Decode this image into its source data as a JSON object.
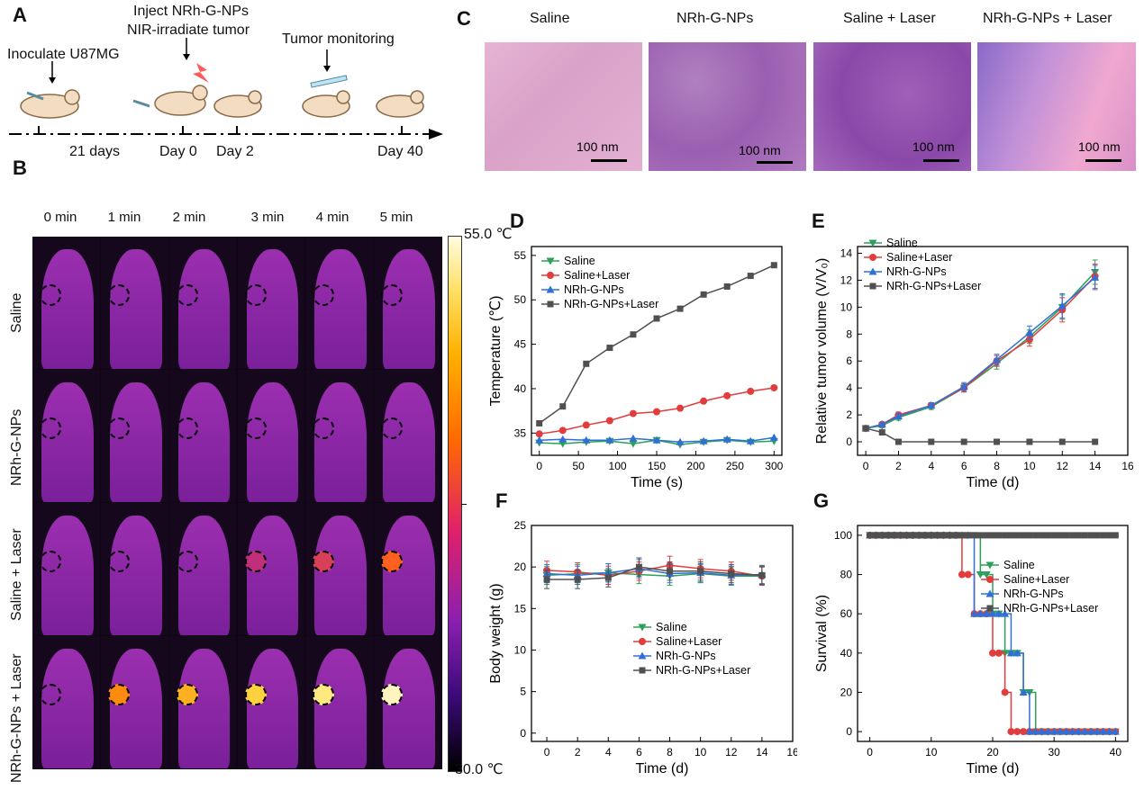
{
  "panelA": {
    "letter": "A",
    "inoculate": "Inoculate U87MG",
    "inject_line1": "Inject NRh-G-NPs",
    "inject_line2": "NIR-irradiate tumor",
    "monitor": "Tumor monitoring",
    "t_21days": "21 days",
    "t_day0": "Day 0",
    "t_day2": "Day 2",
    "t_day40": "Day 40"
  },
  "panelB": {
    "letter": "B",
    "times": [
      "0 min",
      "1 min",
      "2 min",
      "3 min",
      "4 min",
      "5 min"
    ],
    "rows": [
      "Saline",
      "NRh-G-NPs",
      "Saline + Laser",
      "NRh-G-NPs + Laser"
    ],
    "scale_max": "55.0 ℃",
    "scale_min": "30.0 ℃",
    "colors": {
      "scale_top": "#fffbe0",
      "scale_mid": "#ff6a00",
      "scale_low": "#8a1fb0",
      "scale_bottom": "#000000"
    }
  },
  "panelC": {
    "letter": "C",
    "titles": [
      "Saline",
      "NRh-G-NPs",
      "Saline + Laser",
      "NRh-G-NPs + Laser"
    ],
    "scale_label": "100 nm"
  },
  "chart_data": [
    {
      "id": "D",
      "type": "line",
      "xlabel": "Time (s)",
      "ylabel": "Temperature (℃)",
      "xlim": [
        -10,
        310
      ],
      "ylim": [
        32.5,
        56
      ],
      "xticks": [
        0,
        50,
        100,
        150,
        200,
        250,
        300
      ],
      "yticks": [
        35,
        40,
        45,
        50,
        55
      ],
      "legend": "top-left",
      "series": [
        {
          "name": "Saline",
          "color": "#2ca05a",
          "marker": "tri-down",
          "x": [
            0,
            30,
            60,
            90,
            120,
            150,
            180,
            210,
            240,
            270,
            300
          ],
          "y": [
            33.9,
            33.8,
            34.0,
            34.1,
            33.8,
            34.2,
            33.7,
            34.0,
            34.2,
            34.0,
            34.1
          ]
        },
        {
          "name": "Saline+Laser",
          "color": "#e23c3c",
          "marker": "circle",
          "x": [
            0,
            30,
            60,
            90,
            120,
            150,
            180,
            210,
            240,
            270,
            300
          ],
          "y": [
            34.9,
            35.3,
            35.9,
            36.4,
            37.2,
            37.4,
            37.8,
            38.6,
            39.2,
            39.7,
            40.1
          ]
        },
        {
          "name": "NRh-G-NPs",
          "color": "#2f6fd6",
          "marker": "tri-up",
          "x": [
            0,
            30,
            60,
            90,
            120,
            150,
            180,
            210,
            240,
            270,
            300
          ],
          "y": [
            34.2,
            34.3,
            34.2,
            34.2,
            34.4,
            34.2,
            34.0,
            34.1,
            34.3,
            34.1,
            34.5
          ]
        },
        {
          "name": "NRh-G-NPs+Laser",
          "color": "#505050",
          "marker": "square",
          "x": [
            0,
            30,
            60,
            90,
            120,
            150,
            180,
            210,
            240,
            270,
            300
          ],
          "y": [
            36.1,
            38.0,
            42.8,
            44.6,
            46.1,
            47.9,
            49.0,
            50.6,
            51.5,
            52.7,
            53.9
          ]
        }
      ]
    },
    {
      "id": "E",
      "type": "line",
      "xlabel": "Time (d)",
      "ylabel": "Relative tumor volume (V/V₀)",
      "xlim": [
        -0.5,
        16
      ],
      "ylim": [
        -1,
        14.5
      ],
      "xticks": [
        0,
        2,
        4,
        6,
        8,
        10,
        12,
        14,
        16
      ],
      "yticks": [
        0,
        2,
        4,
        6,
        8,
        10,
        12,
        14
      ],
      "legend": "top-left",
      "series": [
        {
          "name": "Saline",
          "color": "#2ca05a",
          "marker": "tri-down",
          "x": [
            0,
            1,
            2,
            4,
            6,
            8,
            10,
            12,
            14
          ],
          "y": [
            1.0,
            1.2,
            1.8,
            2.6,
            4.0,
            5.8,
            7.8,
            10.0,
            12.6
          ]
        },
        {
          "name": "Saline+Laser",
          "color": "#e23c3c",
          "marker": "circle",
          "x": [
            0,
            1,
            2,
            4,
            6,
            8,
            10,
            12,
            14
          ],
          "y": [
            1.0,
            1.3,
            2.0,
            2.7,
            4.0,
            6.0,
            7.6,
            9.8,
            12.3
          ]
        },
        {
          "name": "NRh-G-NPs",
          "color": "#2f6fd6",
          "marker": "tri-up",
          "x": [
            0,
            1,
            2,
            4,
            6,
            8,
            10,
            12,
            14
          ],
          "y": [
            1.0,
            1.3,
            1.9,
            2.7,
            4.1,
            6.1,
            8.1,
            10.1,
            12.2
          ]
        },
        {
          "name": "NRh-G-NPs+Laser",
          "color": "#505050",
          "marker": "square",
          "x": [
            0,
            1,
            2,
            4,
            6,
            8,
            10,
            12,
            14
          ],
          "y": [
            1.0,
            0.7,
            0.0,
            0.0,
            0.0,
            0.0,
            0.0,
            0.0,
            0.0
          ]
        }
      ]
    },
    {
      "id": "F",
      "type": "line",
      "xlabel": "Time (d)",
      "ylabel": "Body weight (g)",
      "xlim": [
        -1,
        16
      ],
      "ylim": [
        -1,
        25
      ],
      "xticks": [
        0,
        2,
        4,
        6,
        8,
        10,
        12,
        14,
        16
      ],
      "yticks": [
        0,
        5,
        10,
        15,
        20,
        25
      ],
      "legend": "center-right",
      "series": [
        {
          "name": "Saline",
          "color": "#2ca05a",
          "marker": "tri-down",
          "x": [
            0,
            2,
            4,
            6,
            8,
            10,
            12,
            14
          ],
          "y": [
            19.0,
            19.2,
            19.3,
            19.1,
            18.9,
            19.2,
            18.9,
            18.9
          ]
        },
        {
          "name": "Saline+Laser",
          "color": "#e23c3c",
          "marker": "circle",
          "x": [
            0,
            2,
            4,
            6,
            8,
            10,
            12,
            14
          ],
          "y": [
            19.6,
            19.4,
            19.0,
            19.5,
            20.2,
            19.8,
            19.5,
            18.9
          ]
        },
        {
          "name": "NRh-G-NPs",
          "color": "#2f6fd6",
          "marker": "tri-up",
          "x": [
            0,
            2,
            4,
            6,
            8,
            10,
            12,
            14
          ],
          "y": [
            19.2,
            19.0,
            19.3,
            19.8,
            19.2,
            19.3,
            19.0,
            19.1
          ]
        },
        {
          "name": "NRh-G-NPs+Laser",
          "color": "#505050",
          "marker": "square",
          "x": [
            0,
            2,
            4,
            6,
            8,
            10,
            12,
            14
          ],
          "y": [
            18.5,
            18.5,
            18.7,
            20.0,
            19.5,
            19.5,
            19.2,
            19.0
          ]
        }
      ]
    },
    {
      "id": "G",
      "type": "line",
      "xlabel": "Time (d)",
      "ylabel": "Survival (%)",
      "xlim": [
        -2,
        42
      ],
      "ylim": [
        -5,
        105
      ],
      "xticks": [
        0,
        10,
        20,
        30,
        40
      ],
      "yticks": [
        0,
        20,
        40,
        60,
        80,
        100
      ],
      "legend": "center-right",
      "series": [
        {
          "name": "Saline",
          "color": "#2ca05a",
          "marker": "tri-down",
          "x": [
            0,
            18,
            20,
            22,
            25,
            27,
            40
          ],
          "y": [
            100,
            80,
            60,
            40,
            20,
            0,
            0
          ]
        },
        {
          "name": "Saline+Laser",
          "color": "#e23c3c",
          "marker": "circle",
          "x": [
            0,
            15,
            17,
            20,
            22,
            23,
            40
          ],
          "y": [
            100,
            80,
            60,
            40,
            20,
            0,
            0
          ]
        },
        {
          "name": "NRh-G-NPs",
          "color": "#2f6fd6",
          "marker": "tri-up",
          "x": [
            0,
            17,
            21,
            23,
            25,
            26,
            40
          ],
          "y": [
            100,
            60,
            60,
            40,
            20,
            0,
            0
          ]
        },
        {
          "name": "NRh-G-NPs+Laser",
          "color": "#505050",
          "marker": "square",
          "x": [
            0,
            40
          ],
          "y": [
            100,
            100
          ]
        }
      ]
    }
  ]
}
